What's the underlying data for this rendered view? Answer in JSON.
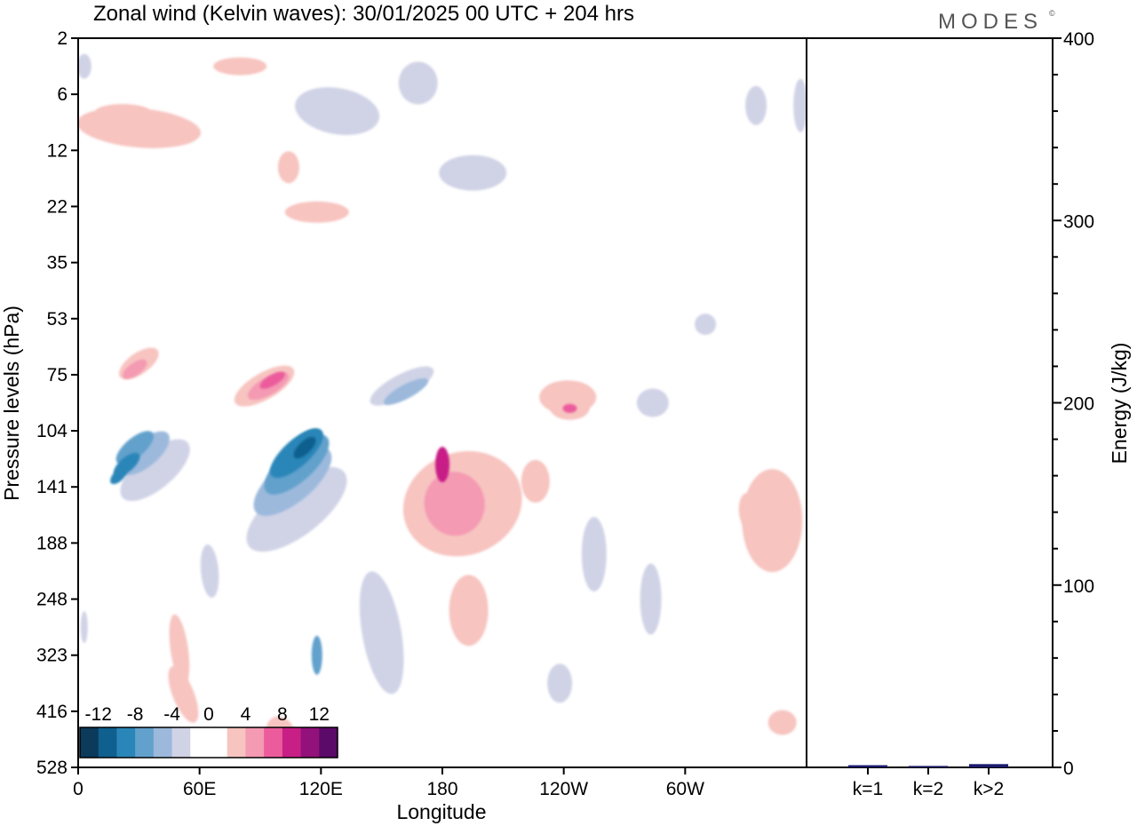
{
  "title": "Zonal wind (Kelvin waves):  30/01/2025  00 UTC  + 204 hrs",
  "logo": "MODES",
  "chart_data": [
    {
      "type": "heatmap",
      "xlabel": "Longitude",
      "ylabel": "Pressure levels (hPa)",
      "x_ticks": [
        "0",
        "60E",
        "120E",
        "180",
        "120W",
        "60W"
      ],
      "y_ticks": [
        "2",
        "6",
        "12",
        "22",
        "35",
        "53",
        "75",
        "104",
        "141",
        "188",
        "248",
        "323",
        "416",
        "528"
      ],
      "colorbar": {
        "ticks": [
          "-12",
          "-8",
          "-4",
          "0",
          "4",
          "8",
          "12"
        ],
        "colors": [
          "#0b3a5a",
          "#0f608e",
          "#2a86b8",
          "#62a1cc",
          "#9cb9dc",
          "#d0d3e6",
          "#ffffff",
          "#ffffff",
          "#f7c4c0",
          "#f49ab3",
          "#ec5c9c",
          "#c81f86",
          "#93117a",
          "#5c0a6a"
        ]
      },
      "features": [
        {
          "level": -4,
          "lon": 45,
          "p_idx": 6.4
        },
        {
          "level": -12,
          "lon": 20,
          "p_idx": 7.8
        },
        {
          "level": -4,
          "lon": 100,
          "p_idx": 8.0
        },
        {
          "level": -12,
          "lon": 110,
          "p_idx": 7.5
        },
        {
          "level": 4,
          "lon": 30,
          "p_idx": 5.7
        },
        {
          "level": 4,
          "lon": 90,
          "p_idx": 6.2
        },
        {
          "level": 8,
          "lon": 95,
          "p_idx": 6.0
        },
        {
          "level": 8,
          "lon": 185,
          "p_idx": 8.0
        },
        {
          "level": 8,
          "lon": 243,
          "p_idx": 6.8
        },
        {
          "level": 4,
          "lon": 335,
          "p_idx": 8.4
        },
        {
          "level": -4,
          "lon": 165,
          "p_idx": 6.6
        }
      ]
    },
    {
      "type": "bar",
      "categories": [
        "k=1",
        "k=2",
        "k>2"
      ],
      "values": [
        1.2,
        0.8,
        1.8
      ],
      "ylabel": "Energy (J/kg)",
      "ylim": [
        0,
        400
      ],
      "yticks": [
        "0",
        "100",
        "200",
        "300",
        "400"
      ]
    }
  ]
}
